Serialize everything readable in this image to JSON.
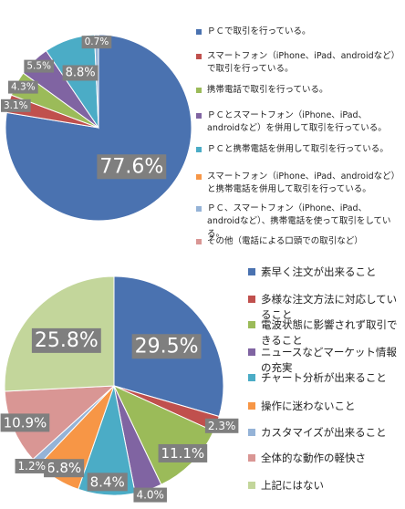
{
  "chart_data": [
    {
      "type": "pie",
      "categories": [
        "ＰＣで取引を行っている。",
        "スマートフォン（iPhone、iPad、androidなど）で取引を行っている。",
        "携帯電話で取引を行っている。",
        "ＰＣとスマートフォン（iPhone、iPad、androidなど）を併用して取引を行っている。",
        "ＰＣと携帯電話を併用して取引を行っている。",
        "スマートフォン（iPhone、iPad、androidなど）と携帯電話を併用して取引を行っている。",
        "ＰＣ、スマートフォン（iPhone、iPad、androidなど）、携帯電話を使って取引をしている。",
        "その他（電話による口頭での取引など）"
      ],
      "values": [
        77.6,
        3.1,
        4.3,
        5.5,
        8.8,
        0,
        0.7,
        0
      ],
      "value_labels": [
        "77.6%",
        "3.1%",
        "4.3%",
        "5.5%",
        "8.8%",
        null,
        "0.7%",
        null
      ],
      "colors": [
        "#4a72b0",
        "#c0504d",
        "#9bbb59",
        "#8064a2",
        "#4bacc6",
        "#f79646",
        "#95b3d7",
        "#d99694"
      ]
    },
    {
      "type": "pie",
      "categories": [
        "素早く注文が出来ること",
        "多様な注文方法に対応していること",
        "電波状態に影響されず取引できること",
        "ニュースなどマーケット情報の充実",
        "チャート分析が出来ること",
        "操作に迷わないこと",
        "カスタマイズが出来ること",
        "全体的な動作の軽快さ",
        "上記にはない"
      ],
      "values": [
        29.5,
        2.3,
        11.1,
        4.0,
        8.4,
        6.8,
        1.2,
        10.9,
        25.8
      ],
      "value_labels": [
        "29.5%",
        "2.3%",
        "11.1%",
        "4.0%",
        "8.4%",
        "6.8%",
        "1.2%",
        "10.9%",
        "25.8%"
      ],
      "colors": [
        "#4a72b0",
        "#c0504d",
        "#9bbb59",
        "#8064a2",
        "#4bacc6",
        "#f79646",
        "#95b3d7",
        "#d99694",
        "#c3d69b"
      ]
    }
  ]
}
